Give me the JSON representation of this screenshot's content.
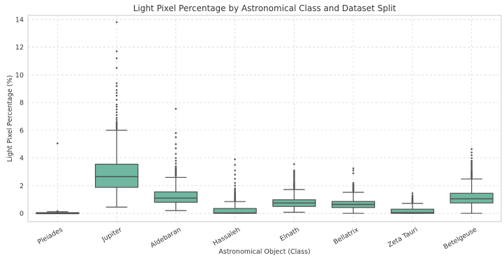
{
  "chart_data": {
    "type": "box",
    "title": "Light Pixel Percentage by Astronomical Class and Dataset Split",
    "xlabel": "Astronomical Object (Class)",
    "ylabel": "Light Pixel Percentage (%)",
    "ylim": [
      -0.6,
      14.3
    ],
    "yticks": [
      0,
      2,
      4,
      6,
      8,
      10,
      12,
      14
    ],
    "grid": true,
    "colors": {
      "box_fill": "#6fb7a0",
      "box_edge": "#4d4d4d",
      "median": "#4d4d4d",
      "outlier": "#555555"
    },
    "categories": [
      "Pleiades",
      "Jupiter",
      "Aldebaran",
      "Hassaleh",
      "Elnath",
      "Bellatrix",
      "Zeta Tauri",
      "Betelgeuse"
    ],
    "boxes": [
      {
        "category": "Pleiades",
        "whisker_low": 0.0,
        "q1": 0.0,
        "median": 0.02,
        "q3": 0.05,
        "whisker_high": 0.12,
        "outliers": [
          0.14,
          0.16,
          5.05
        ]
      },
      {
        "category": "Jupiter",
        "whisker_low": 0.45,
        "q1": 1.88,
        "median": 2.65,
        "q3": 3.55,
        "whisker_high": 6.0,
        "outliers": [
          6.1,
          6.2,
          6.3,
          6.4,
          6.5,
          6.6,
          6.75,
          6.9,
          7.1,
          7.3,
          7.5,
          7.7,
          7.85,
          8.2,
          8.5,
          8.7,
          8.9,
          9.2,
          9.4,
          10.5,
          11.2,
          11.7,
          13.8
        ]
      },
      {
        "category": "Aldebaran",
        "whisker_low": 0.2,
        "q1": 0.8,
        "median": 1.1,
        "q3": 1.55,
        "whisker_high": 2.6,
        "outliers": [
          2.7,
          2.75,
          2.8,
          2.85,
          2.9,
          2.95,
          3.0,
          3.05,
          3.1,
          3.15,
          3.2,
          3.25,
          3.3,
          3.4,
          3.6,
          3.8,
          4.0,
          4.3,
          4.7,
          5.0,
          5.5,
          5.8,
          7.55
        ]
      },
      {
        "category": "Hassaleh",
        "whisker_low": 0.0,
        "q1": 0.0,
        "median": 0.03,
        "q3": 0.35,
        "whisker_high": 0.85,
        "outliers": [
          0.9,
          0.95,
          1.0,
          1.05,
          1.1,
          1.15,
          1.2,
          1.25,
          1.3,
          1.35,
          1.4,
          1.45,
          1.5,
          1.6,
          1.7,
          1.8,
          2.0,
          2.2,
          2.5,
          2.8,
          3.1,
          3.5,
          3.9
        ]
      },
      {
        "category": "Elnath",
        "whisker_low": 0.08,
        "q1": 0.5,
        "median": 0.75,
        "q3": 0.98,
        "whisker_high": 1.72,
        "outliers": [
          1.78,
          1.85,
          1.9,
          1.95,
          2.0,
          2.05,
          2.1,
          2.15,
          2.2,
          2.3,
          2.4,
          2.5,
          2.6,
          2.7,
          2.8,
          2.9,
          3.0,
          3.1,
          3.55
        ]
      },
      {
        "category": "Bellatrix",
        "whisker_low": 0.0,
        "q1": 0.42,
        "median": 0.64,
        "q3": 0.86,
        "whisker_high": 1.52,
        "outliers": [
          1.6,
          1.65,
          1.7,
          1.75,
          1.8,
          1.85,
          1.9,
          1.95,
          2.0,
          2.05,
          2.1,
          2.2,
          2.9,
          3.1,
          3.25
        ]
      },
      {
        "category": "Zeta Tauri",
        "whisker_low": 0.0,
        "q1": 0.0,
        "median": 0.05,
        "q3": 0.3,
        "whisker_high": 0.72,
        "outliers": [
          0.76,
          0.8,
          0.85,
          0.9,
          0.95,
          1.0,
          1.05,
          1.1,
          1.2,
          1.3,
          1.45
        ]
      },
      {
        "category": "Betelgeuse",
        "whisker_low": 0.0,
        "q1": 0.75,
        "median": 1.05,
        "q3": 1.45,
        "whisker_high": 2.48,
        "outliers": [
          2.55,
          2.6,
          2.65,
          2.7,
          2.75,
          2.8,
          2.85,
          2.9,
          2.95,
          3.0,
          3.05,
          3.1,
          3.2,
          3.3,
          3.4,
          3.5,
          3.6,
          3.7,
          3.8,
          4.0,
          4.2,
          4.4,
          4.65
        ]
      }
    ]
  }
}
